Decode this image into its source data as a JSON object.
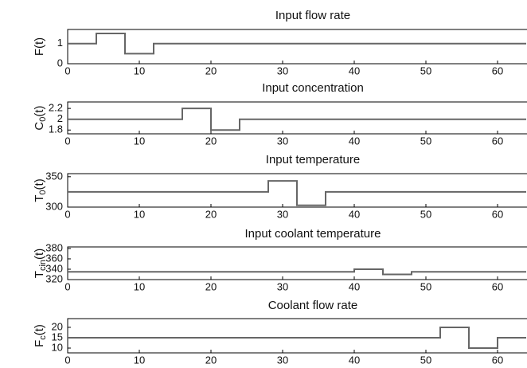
{
  "chart_data": [
    {
      "type": "line",
      "title": "Input flow rate",
      "ylabel": [
        "F(t)"
      ],
      "x": [
        0,
        4,
        4,
        8,
        8,
        12,
        12,
        64
      ],
      "values": [
        1,
        1,
        1.5,
        1.5,
        0.5,
        0.5,
        1,
        1
      ],
      "color": "#666666",
      "xlim": [
        0,
        64
      ],
      "xticks": [
        0,
        10,
        20,
        30,
        40,
        50,
        60
      ],
      "ylim": [
        0,
        1.7
      ],
      "yticks": [
        0,
        1
      ]
    },
    {
      "type": "line",
      "title": "Input concentration",
      "ylabel": [
        "C",
        "0",
        "(t)"
      ],
      "x": [
        0,
        16,
        16,
        20,
        20,
        24,
        24,
        64
      ],
      "values": [
        2,
        2,
        2.2,
        2.2,
        1.8,
        1.8,
        2,
        2
      ],
      "color": "#666666",
      "xlim": [
        0,
        64
      ],
      "xticks": [
        0,
        10,
        20,
        30,
        40,
        50,
        60
      ],
      "ylim": [
        1.73,
        2.32
      ],
      "yticks": [
        1.8,
        2,
        2.2
      ]
    },
    {
      "type": "line",
      "title": "Input temperature",
      "ylabel": [
        "T",
        "0",
        "(t)"
      ],
      "x": [
        0,
        28,
        28,
        32,
        32,
        36,
        36,
        64
      ],
      "values": [
        325,
        325,
        343,
        343,
        303,
        303,
        325,
        325
      ],
      "color": "#666666",
      "xlim": [
        0,
        64
      ],
      "xticks": [
        0,
        10,
        20,
        30,
        40,
        50,
        60
      ],
      "ylim": [
        300,
        355
      ],
      "yticks": [
        300,
        350
      ]
    },
    {
      "type": "line",
      "title": "Input coolant temperature",
      "ylabel": [
        "T",
        "cin",
        "(t)"
      ],
      "x": [
        0,
        40,
        40,
        44,
        44,
        48,
        48,
        64
      ],
      "values": [
        335,
        335,
        340,
        340,
        330,
        330,
        335,
        335
      ],
      "color": "#666666",
      "xlim": [
        0,
        64
      ],
      "xticks": [
        0,
        10,
        20,
        30,
        40,
        50,
        60
      ],
      "ylim": [
        320,
        383
      ],
      "yticks": [
        320,
        340,
        360,
        380
      ]
    },
    {
      "type": "line",
      "title": "Coolant flow rate",
      "ylabel": [
        "F",
        "c",
        "(t)"
      ],
      "x": [
        0,
        52,
        52,
        56,
        56,
        60,
        60,
        64
      ],
      "values": [
        15,
        15,
        20,
        20,
        10,
        10,
        15,
        15
      ],
      "color": "#666666",
      "xlim": [
        0,
        64
      ],
      "xticks": [
        0,
        10,
        20,
        30,
        40,
        50,
        60
      ],
      "ylim": [
        7.7,
        24.2
      ],
      "yticks": [
        10,
        15,
        20
      ]
    }
  ]
}
